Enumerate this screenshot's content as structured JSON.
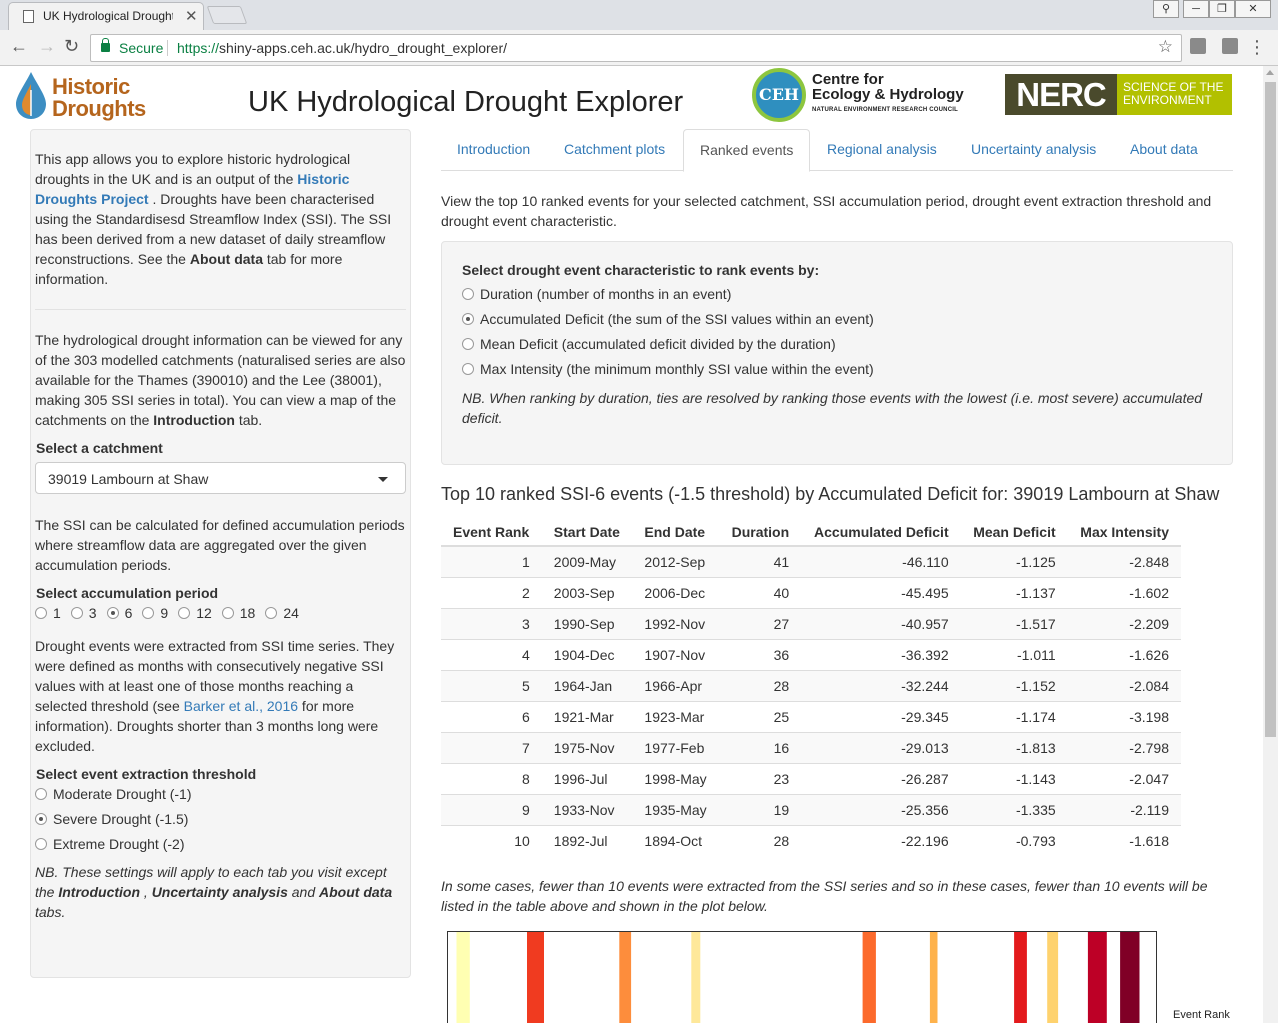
{
  "browser": {
    "tab_title": "UK Hydrological Drought Explorer",
    "secure_label": "Secure",
    "url_scheme": "https://",
    "url_host": "shiny-apps.ceh.ac.uk",
    "url_path": "/hydro_drought_explorer/"
  },
  "header": {
    "logo_line1": "Historic",
    "logo_line2": "Droughts",
    "title": "UK Hydrological Drought Explorer",
    "ceh_circle": "CEH",
    "ceh_line1": "Centre for",
    "ceh_line2": "Ecology & Hydrology",
    "ceh_sub": "NATURAL ENVIRONMENT RESEARCH COUNCIL",
    "nerc": "NERC",
    "nerc_line1": "SCIENCE OF THE",
    "nerc_line2": "ENVIRONMENT"
  },
  "sidebar": {
    "p1_a": "This app allows you to explore historic hydrological droughts in the UK and is an output of the ",
    "p1_link": "Historic Droughts Project",
    "p1_b": " . Droughts have been characterised using the Standardisesd Streamflow Index (SSI). The SSI has been derived from a new dataset of daily streamflow reconstructions. See the ",
    "p1_bold": "About data",
    "p1_c": " tab for more information.",
    "p2_a": "The hydrological drought information can be viewed for any of the 303 modelled catchments (naturalised series are also available for the Thames (390010) and the Lee (38001), making 305 SSI series in total). You can view a map of the catchments on the ",
    "p2_bold": "Introduction",
    "p2_b": " tab.",
    "catchment_label": "Select a catchment",
    "catchment_value": "39019 Lambourn at Shaw",
    "p3": "The SSI can be calculated for defined accumulation periods where streamflow data are aggregated over the given accumulation periods.",
    "accum_label": "Select accumulation period",
    "accum_options": [
      "1",
      "3",
      "6",
      "9",
      "12",
      "18",
      "24"
    ],
    "accum_selected": "6",
    "p4_a": "Drought events were extracted from SSI time series. They were defined as months with consecutively negative SSI values with at least one of those months reaching a selected threshold (see ",
    "p4_link": "Barker et al., 2016",
    "p4_b": " for more information). Droughts shorter than 3 months long were excluded.",
    "threshold_label": "Select event extraction threshold",
    "threshold_options": [
      "Moderate Drought (-1)",
      "Severe Drought (-1.5)",
      "Extreme Drought (-2)"
    ],
    "threshold_selected": "Severe Drought (-1.5)",
    "note_a": "NB. These settings will apply to each tab you visit except the ",
    "note_b1": "Introduction",
    "note_c": " , ",
    "note_b2": "Uncertainty analysis",
    "note_d": " and ",
    "note_b3": "About data",
    "note_e": " tabs."
  },
  "tabs": [
    "Introduction",
    "Catchment plots",
    "Ranked events",
    "Regional analysis",
    "Uncertainty analysis",
    "About data"
  ],
  "active_tab": "Ranked events",
  "main": {
    "intro": "View the top 10 ranked events for your selected catchment, SSI accumulation period, drought event extraction threshold and drought event characteristic.",
    "rank_label": "Select drought event characteristic to rank events by:",
    "rank_options": [
      "Duration (number of months in an event)",
      "Accumulated Deficit (the sum of the SSI values within an event)",
      "Mean Deficit (accumulated deficit divided by the duration)",
      "Max Intensity (the minimum monthly SSI value within the event)"
    ],
    "rank_selected": "Accumulated Deficit (the sum of the SSI values within an event)",
    "rank_note": "NB. When ranking by duration, ties are resolved by ranking those events with the lowest (i.e. most severe) accumulated deficit.",
    "table_title": "Top 10 ranked SSI-6 events (-1.5 threshold) by Accumulated Deficit for: 39019 Lambourn at Shaw",
    "columns": [
      "Event Rank",
      "Start Date",
      "End Date",
      "Duration",
      "Accumulated Deficit",
      "Mean Deficit",
      "Max Intensity"
    ],
    "rows": [
      [
        "1",
        "2009-May",
        "2012-Sep",
        "41",
        "-46.110",
        "-1.125",
        "-2.848"
      ],
      [
        "2",
        "2003-Sep",
        "2006-Dec",
        "40",
        "-45.495",
        "-1.137",
        "-1.602"
      ],
      [
        "3",
        "1990-Sep",
        "1992-Nov",
        "27",
        "-40.957",
        "-1.517",
        "-2.209"
      ],
      [
        "4",
        "1904-Dec",
        "1907-Nov",
        "36",
        "-36.392",
        "-1.011",
        "-1.626"
      ],
      [
        "5",
        "1964-Jan",
        "1966-Apr",
        "28",
        "-32.244",
        "-1.152",
        "-2.084"
      ],
      [
        "6",
        "1921-Mar",
        "1923-Mar",
        "25",
        "-29.345",
        "-1.174",
        "-3.198"
      ],
      [
        "7",
        "1975-Nov",
        "1977-Feb",
        "16",
        "-29.013",
        "-1.813",
        "-2.798"
      ],
      [
        "8",
        "1996-Jul",
        "1998-May",
        "23",
        "-26.287",
        "-1.143",
        "-2.047"
      ],
      [
        "9",
        "1933-Nov",
        "1935-May",
        "19",
        "-25.356",
        "-1.335",
        "-2.119"
      ],
      [
        "10",
        "1892-Jul",
        "1894-Oct",
        "28",
        "-22.196",
        "-0.793",
        "-1.618"
      ]
    ],
    "cases_note": "In some cases, fewer than 10 events were extracted from the SSI series and so in these cases, fewer than 10 events will be listed in the table above and shown in the plot below.",
    "plot_legend_title": "Event Rank"
  },
  "chart_data": {
    "type": "bar",
    "legend_title": "Event Rank",
    "x_start": "1891-Jan",
    "x_end": "2015-Dec",
    "events": [
      {
        "rank": 10,
        "start": "1892-Jul",
        "end": "1894-Oct",
        "color": "#ffffb2"
      },
      {
        "rank": 4,
        "start": "1904-Dec",
        "end": "1907-Nov",
        "color": "#f03b20"
      },
      {
        "rank": 6,
        "start": "1921-Mar",
        "end": "1923-Mar",
        "color": "#fd8d3c"
      },
      {
        "rank": 9,
        "start": "1933-Nov",
        "end": "1935-May",
        "color": "#fee89a"
      },
      {
        "rank": 5,
        "start": "1964-Jan",
        "end": "1966-Apr",
        "color": "#fc6a2c"
      },
      {
        "rank": 7,
        "start": "1975-Nov",
        "end": "1977-Feb",
        "color": "#feb24c"
      },
      {
        "rank": 3,
        "start": "1990-Sep",
        "end": "1992-Nov",
        "color": "#e31a1c"
      },
      {
        "rank": 8,
        "start": "1996-Jul",
        "end": "1998-May",
        "color": "#fed26e"
      },
      {
        "rank": 2,
        "start": "2003-Sep",
        "end": "2006-Dec",
        "color": "#bd0026"
      },
      {
        "rank": 1,
        "start": "2009-May",
        "end": "2012-Sep",
        "color": "#800026"
      }
    ]
  }
}
